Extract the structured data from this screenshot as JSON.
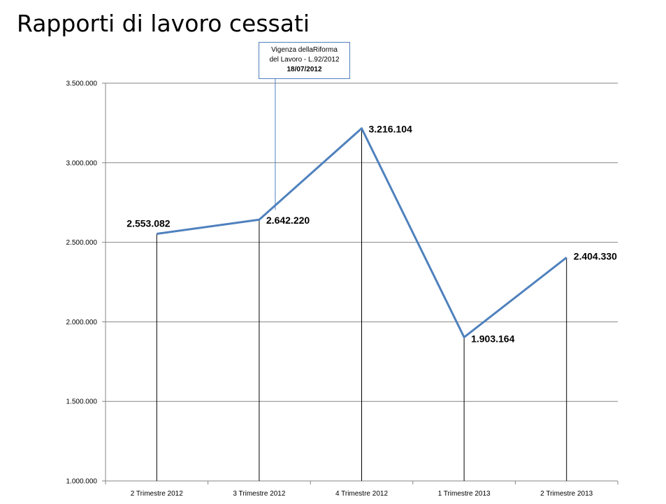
{
  "slide": {
    "title": "Rapporti di lavoro cessati"
  },
  "annotation": {
    "line1": "Vigenza dellaRiforma",
    "line2": "del Lavoro - L.92/2012",
    "line3": "18/07/2012"
  },
  "chart_data": {
    "type": "line",
    "title": "",
    "xlabel": "",
    "ylabel": "",
    "categories": [
      "2 Trimestre 2012",
      "3 Trimestre 2012",
      "4 Trimestre 2012",
      "1 Trimestre 2013",
      "2 Trimestre 2013"
    ],
    "values": [
      2553082,
      2642220,
      3216104,
      1903164,
      2404330
    ],
    "data_labels": [
      "2.553.082",
      "2.642.220",
      "3.216.104",
      "1.903.164",
      "2.404.330"
    ],
    "ylim": [
      1000000,
      3500000
    ],
    "yticks": [
      1000000,
      1500000,
      2000000,
      2500000,
      3000000,
      3500000
    ],
    "ytick_labels": [
      "1.000.000",
      "1.500.000",
      "2.000.000",
      "2.500.000",
      "3.000.000",
      "3.500.000"
    ],
    "grid": true,
    "drop_lines": true,
    "legend": "none",
    "line_color": "#4f81bd",
    "annotation_category_index": 1
  }
}
